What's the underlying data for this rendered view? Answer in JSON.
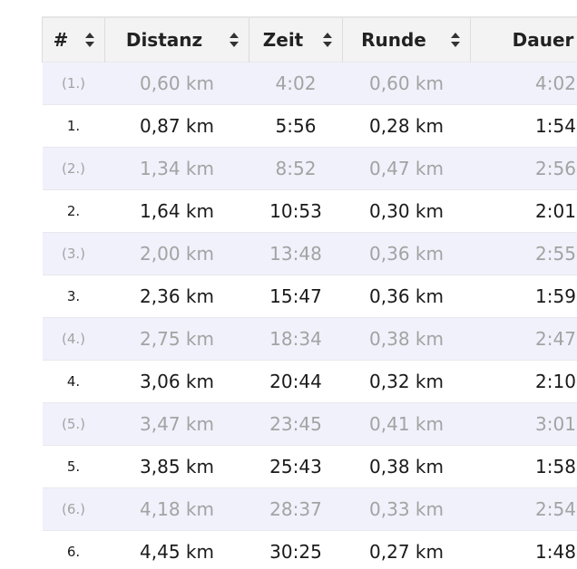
{
  "table": {
    "headers": [
      "#",
      "Distanz",
      "Zeit",
      "Runde",
      "Dauer"
    ],
    "rows": [
      [
        "(1.)",
        "0,60 km",
        "4:02",
        "0,60 km",
        "4:02"
      ],
      [
        "1.",
        "0,87 km",
        "5:56",
        "0,28 km",
        "1:54"
      ],
      [
        "(2.)",
        "1,34 km",
        "8:52",
        "0,47 km",
        "2:56"
      ],
      [
        "2.",
        "1,64 km",
        "10:53",
        "0,30 km",
        "2:01"
      ],
      [
        "(3.)",
        "2,00 km",
        "13:48",
        "0,36 km",
        "2:55"
      ],
      [
        "3.",
        "2,36 km",
        "15:47",
        "0,36 km",
        "1:59"
      ],
      [
        "(4.)",
        "2,75 km",
        "18:34",
        "0,38 km",
        "2:47"
      ],
      [
        "4.",
        "3,06 km",
        "20:44",
        "0,32 km",
        "2:10"
      ],
      [
        "(5.)",
        "3,47 km",
        "23:45",
        "0,41 km",
        "3:01"
      ],
      [
        "5.",
        "3,85 km",
        "25:43",
        "0,38 km",
        "1:58"
      ],
      [
        "(6.)",
        "4,18 km",
        "28:37",
        "0,33 km",
        "2:54"
      ],
      [
        "6.",
        "4,45 km",
        "30:25",
        "0,27 km",
        "1:48"
      ]
    ]
  }
}
